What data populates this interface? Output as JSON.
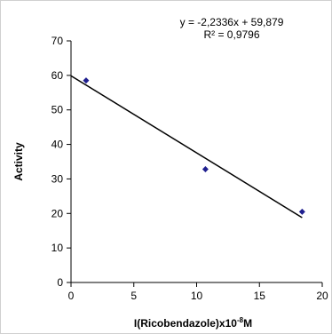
{
  "chart_data": {
    "type": "scatter",
    "title": "",
    "xlabel": "I(Ricobendazole)x10",
    "xlabel_superscript": "-8",
    "xlabel_suffix": "M",
    "ylabel": "Activity",
    "xlim": [
      0,
      20
    ],
    "ylim": [
      0,
      70
    ],
    "x_ticks": [
      0,
      5,
      10,
      15,
      20
    ],
    "y_ticks": [
      0,
      10,
      20,
      30,
      40,
      50,
      60,
      70
    ],
    "grid": false,
    "legend": "none",
    "marker_color": "#1f1f8f",
    "series": [
      {
        "points": [
          {
            "x": 1.2,
            "y": 58.5
          },
          {
            "x": 10.7,
            "y": 32.8
          },
          {
            "x": 18.4,
            "y": 20.5
          }
        ]
      }
    ],
    "trendline": {
      "slope": -2.2336,
      "intercept": 59.879,
      "x_range": [
        0,
        18.4
      ],
      "equation_text": "y = -2,2336x + 59,879",
      "r2_text": "R² = 0,9796"
    }
  }
}
